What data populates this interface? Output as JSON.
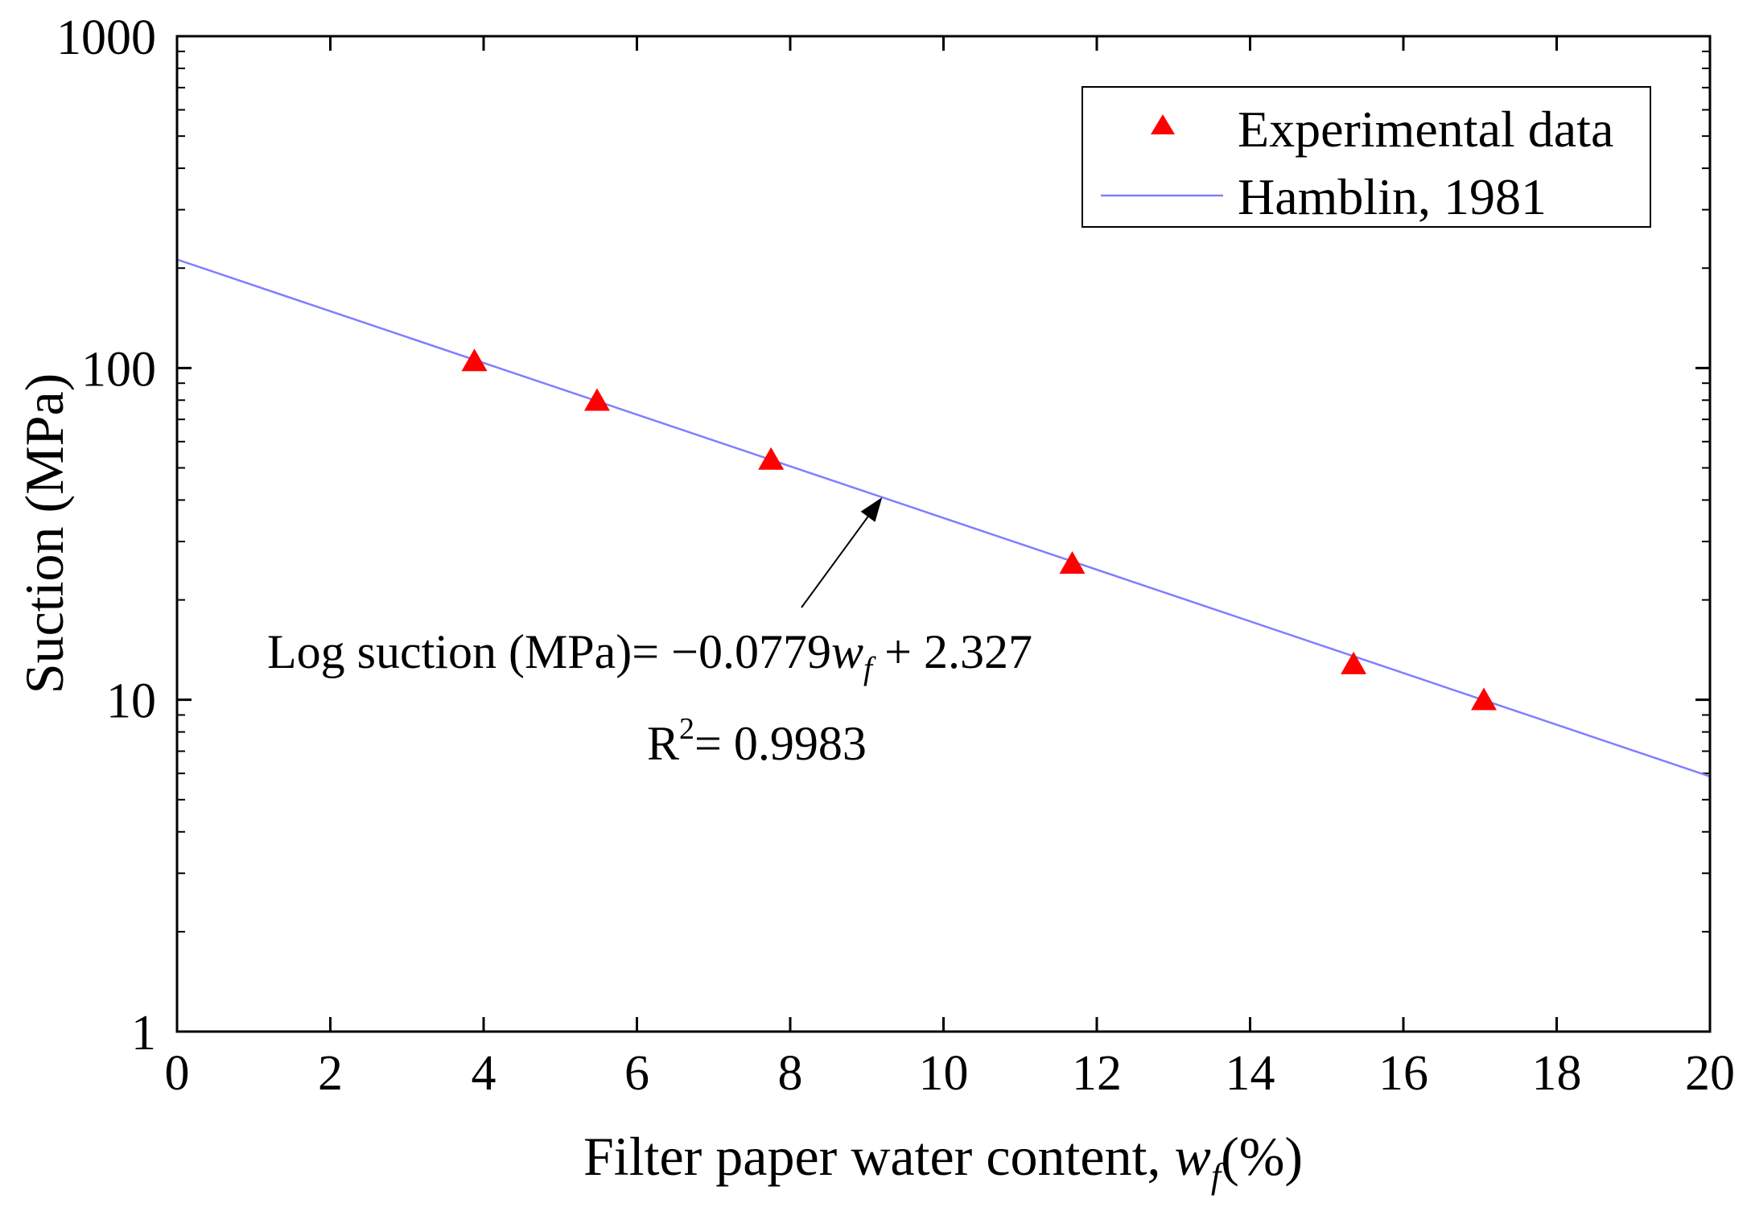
{
  "chart_data": {
    "type": "scatter",
    "title": "",
    "xlabel_parts": [
      "Filter paper water content, ",
      "w",
      "f",
      "(%)"
    ],
    "ylabel": "Suction (MPa)",
    "xlim": [
      0,
      20
    ],
    "ylim": [
      1,
      1000
    ],
    "y_scale": "log",
    "x_ticks": [
      0,
      2,
      4,
      6,
      8,
      10,
      12,
      14,
      16,
      18,
      20
    ],
    "x_tick_labels": [
      "0",
      "2",
      "4",
      "6",
      "8",
      "10",
      "12",
      "14",
      "16",
      "18",
      "20"
    ],
    "y_ticks": [
      1,
      10,
      100,
      1000
    ],
    "y_tick_labels": [
      "1",
      "10",
      "100",
      "1000"
    ],
    "grid": false,
    "legend_position": "top-right",
    "series": [
      {
        "name": "Experimental data",
        "kind": "scatter",
        "marker": "triangle",
        "color": "#ff0000",
        "points": [
          {
            "x": 3.88,
            "y": 104
          },
          {
            "x": 5.48,
            "y": 79
          },
          {
            "x": 7.75,
            "y": 52.5
          },
          {
            "x": 11.68,
            "y": 25.5
          },
          {
            "x": 15.35,
            "y": 12.7
          },
          {
            "x": 17.05,
            "y": 9.9
          }
        ]
      },
      {
        "name": "Hamblin, 1981",
        "kind": "line",
        "color": "#7f7fff",
        "slope": -0.0779,
        "intercept": 2.327
      }
    ],
    "annotation": {
      "equation_parts": [
        "Log suction (MPa)= −0.0779",
        "w",
        "f",
        " + 2.327"
      ],
      "r2_parts": [
        "R",
        "2",
        "= 0.9983"
      ],
      "arrow_target_x": 9.2
    }
  }
}
